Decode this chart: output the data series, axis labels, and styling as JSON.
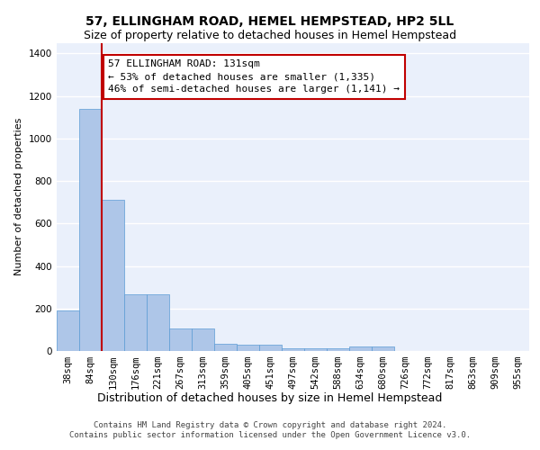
{
  "title_line1": "57, ELLINGHAM ROAD, HEMEL HEMPSTEAD, HP2 5LL",
  "title_line2": "Size of property relative to detached houses in Hemel Hempstead",
  "xlabel": "Distribution of detached houses by size in Hemel Hempstead",
  "ylabel": "Number of detached properties",
  "bin_labels": [
    "38sqm",
    "84sqm",
    "130sqm",
    "176sqm",
    "221sqm",
    "267sqm",
    "313sqm",
    "359sqm",
    "405sqm",
    "451sqm",
    "497sqm",
    "542sqm",
    "588sqm",
    "634sqm",
    "680sqm",
    "726sqm",
    "772sqm",
    "817sqm",
    "863sqm",
    "909sqm",
    "955sqm"
  ],
  "bar_values": [
    190,
    1140,
    710,
    265,
    265,
    107,
    107,
    35,
    28,
    28,
    13,
    13,
    13,
    20,
    20,
    0,
    0,
    0,
    0,
    0,
    0
  ],
  "bar_color": "#aec6e8",
  "bar_edge_color": "#5b9bd5",
  "vline_pos": 1.5,
  "vline_color": "#c00000",
  "annotation_text": "57 ELLINGHAM ROAD: 131sqm\n← 53% of detached houses are smaller (1,335)\n46% of semi-detached houses are larger (1,141) →",
  "annotation_box_color": "#ffffff",
  "annotation_box_edge": "#c00000",
  "ylim": [
    0,
    1450
  ],
  "yticks": [
    0,
    200,
    400,
    600,
    800,
    1000,
    1200,
    1400
  ],
  "bg_color": "#eaf0fb",
  "grid_color": "#ffffff",
  "footer_text": "Contains HM Land Registry data © Crown copyright and database right 2024.\nContains public sector information licensed under the Open Government Licence v3.0.",
  "title1_fontsize": 10,
  "title2_fontsize": 9,
  "xlabel_fontsize": 9,
  "ylabel_fontsize": 8,
  "tick_fontsize": 7.5,
  "annotation_fontsize": 8,
  "footer_fontsize": 6.5
}
